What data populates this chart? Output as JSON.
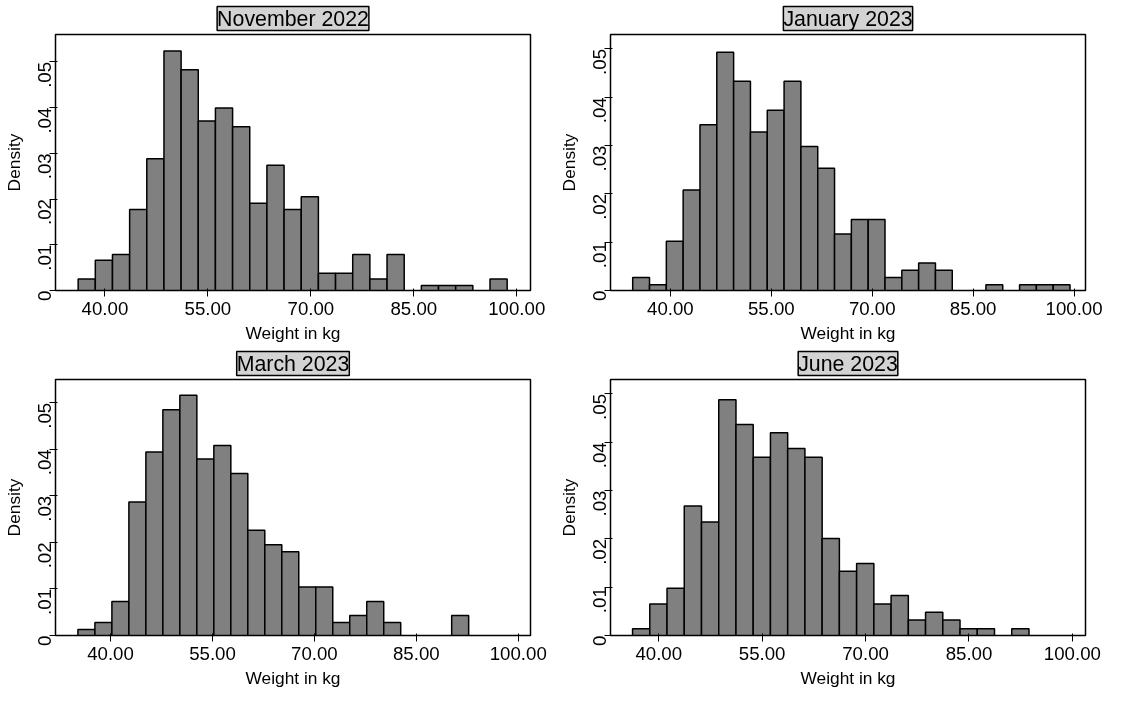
{
  "chart_data": [
    {
      "type": "histogram",
      "title": "November 2022",
      "xlabel": "Weight in kg",
      "ylabel": "Density",
      "color": "#808080",
      "bins": [
        36.1,
        38.6,
        41.1,
        43.6,
        46.1,
        48.6,
        51.1,
        53.6,
        56.1,
        58.6,
        61.1,
        63.6,
        66.1,
        68.6,
        71.1,
        73.6,
        76.1,
        78.6,
        81.1,
        83.6,
        86.1,
        88.6,
        91.1,
        93.6,
        96.1,
        98.6
      ],
      "values": [
        0.0025,
        0.0066,
        0.0079,
        0.0177,
        0.0288,
        0.0524,
        0.0483,
        0.0371,
        0.0399,
        0.0358,
        0.0191,
        0.0274,
        0.0177,
        0.0205,
        0.0038,
        0.0038,
        0.0079,
        0.0025,
        0.0079,
        0,
        0.0011,
        0.0011,
        0.0011,
        0,
        0.0025
      ],
      "xlim": [
        32.8,
        102
      ],
      "ylim": [
        0,
        0.056
      ],
      "xticks": [
        {
          "value": 40,
          "label": "40.00"
        },
        {
          "value": 55,
          "label": "55.00"
        },
        {
          "value": 70,
          "label": "70.00"
        },
        {
          "value": 85,
          "label": "85.00"
        },
        {
          "value": 100,
          "label": "100.00"
        }
      ],
      "yticks": [
        0,
        {
          "value": 0.01,
          "label": ".01"
        },
        {
          "value": 0.02,
          "label": ".02"
        },
        {
          "value": 0.03,
          "label": ".03"
        },
        {
          "value": 0.04,
          "label": ".04"
        },
        {
          "value": 0.05,
          "label": ".05"
        }
      ]
    },
    {
      "type": "histogram",
      "title": "January 2023",
      "xlabel": "Weight in kg",
      "ylabel": "Density",
      "color": "#808080",
      "bins": [
        34.4,
        36.9,
        39.4,
        41.9,
        44.4,
        46.9,
        49.4,
        51.9,
        54.4,
        56.9,
        59.4,
        61.9,
        64.4,
        66.9,
        69.4,
        71.9,
        74.4,
        76.9,
        79.4,
        81.9,
        84.4,
        86.9,
        89.4,
        91.9,
        94.4,
        96.9,
        99.4
      ],
      "values": [
        0.0027,
        0.0012,
        0.0102,
        0.0208,
        0.0343,
        0.0493,
        0.0433,
        0.0328,
        0.0373,
        0.0433,
        0.0298,
        0.0253,
        0.0117,
        0.0147,
        0.0147,
        0.0027,
        0.0042,
        0.0057,
        0.0042,
        0,
        0,
        0.0012,
        0,
        0.0012,
        0.0012,
        0.0012
      ],
      "xlim": [
        31.1,
        101.7
      ],
      "ylim": [
        0,
        0.053
      ],
      "xticks": [
        {
          "value": 40,
          "label": "40.00"
        },
        {
          "value": 55,
          "label": "55.00"
        },
        {
          "value": 70,
          "label": "70.00"
        },
        {
          "value": 85,
          "label": "85.00"
        },
        {
          "value": 100,
          "label": "100.00"
        }
      ],
      "yticks": [
        0,
        {
          "value": 0.01,
          "label": ".01"
        },
        {
          "value": 0.02,
          "label": ".02"
        },
        {
          "value": 0.03,
          "label": ".03"
        },
        {
          "value": 0.04,
          "label": ".04"
        },
        {
          "value": 0.05,
          "label": ".05"
        }
      ]
    },
    {
      "type": "histogram",
      "title": "March 2023",
      "xlabel": "Weight in kg",
      "ylabel": "Density",
      "color": "#808080",
      "bins": [
        35.2,
        37.7,
        40.2,
        42.7,
        45.2,
        47.7,
        50.2,
        52.7,
        55.2,
        57.7,
        60.2,
        62.7,
        65.2,
        67.7,
        70.2,
        72.7,
        75.2,
        77.7,
        80.2,
        82.7,
        85.2,
        87.7,
        90.2,
        92.7
      ],
      "values": [
        0.0013,
        0.0028,
        0.0073,
        0.0287,
        0.0394,
        0.0485,
        0.0516,
        0.0379,
        0.0408,
        0.0348,
        0.0226,
        0.0195,
        0.018,
        0.0104,
        0.0104,
        0.0028,
        0.0043,
        0.0073,
        0.0028,
        0,
        0,
        0,
        0.0043
      ],
      "xlim": [
        31.9,
        101.8
      ],
      "ylim": [
        0,
        0.055
      ],
      "xticks": [
        {
          "value": 40,
          "label": "40.00"
        },
        {
          "value": 55,
          "label": "55.00"
        },
        {
          "value": 70,
          "label": "70.00"
        },
        {
          "value": 85,
          "label": "85.00"
        },
        {
          "value": 100,
          "label": "100.00"
        }
      ],
      "yticks": [
        0,
        {
          "value": 0.01,
          "label": ".01"
        },
        {
          "value": 0.02,
          "label": ".02"
        },
        {
          "value": 0.03,
          "label": ".03"
        },
        {
          "value": 0.04,
          "label": ".04"
        },
        {
          "value": 0.05,
          "label": ".05"
        }
      ]
    },
    {
      "type": "histogram",
      "title": "June 2023",
      "xlabel": "Weight in kg",
      "ylabel": "Density",
      "color": "#808080",
      "bins": [
        36.2,
        38.7,
        41.2,
        43.7,
        46.2,
        48.7,
        51.2,
        53.7,
        56.2,
        58.7,
        61.2,
        63.7,
        66.2,
        68.7,
        71.2,
        73.7,
        76.2,
        78.7,
        81.2,
        83.7,
        86.2,
        88.7,
        91.2,
        93.7
      ],
      "values": [
        0.0014,
        0.0065,
        0.0098,
        0.0268,
        0.0235,
        0.0488,
        0.0437,
        0.0369,
        0.042,
        0.0387,
        0.0369,
        0.0201,
        0.0133,
        0.0149,
        0.0065,
        0.0083,
        0.0032,
        0.0048,
        0.0032,
        0.0014,
        0.0014,
        0,
        0.0014
      ],
      "xlim": [
        33.0,
        101.9
      ],
      "ylim": [
        0,
        0.053
      ],
      "xticks": [
        {
          "value": 40,
          "label": "40.00"
        },
        {
          "value": 55,
          "label": "55.00"
        },
        {
          "value": 70,
          "label": "70.00"
        },
        {
          "value": 85,
          "label": "85.00"
        },
        {
          "value": 100,
          "label": "100.00"
        }
      ],
      "yticks": [
        0,
        {
          "value": 0.01,
          "label": ".01"
        },
        {
          "value": 0.02,
          "label": ".02"
        },
        {
          "value": 0.03,
          "label": ".03"
        },
        {
          "value": 0.04,
          "label": ".04"
        },
        {
          "value": 0.05,
          "label": ".05"
        }
      ]
    }
  ]
}
